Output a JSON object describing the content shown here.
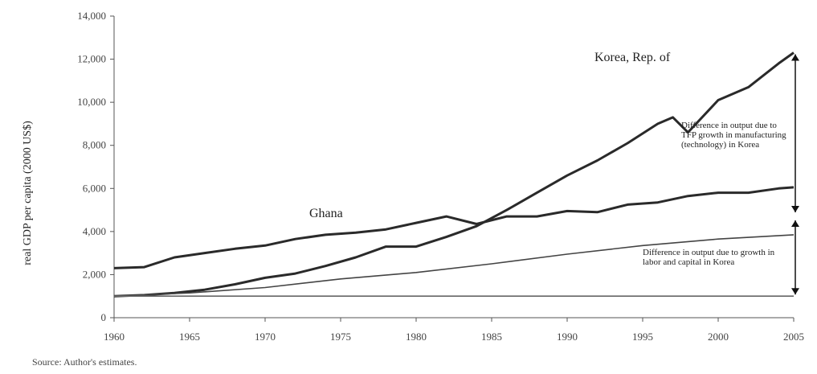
{
  "chart_data": {
    "type": "line",
    "title": "",
    "xlabel": "",
    "ylabel": "real GDP per capita (2000 US$)",
    "xlim": [
      1960,
      2005
    ],
    "ylim": [
      0,
      14000
    ],
    "x_ticks": [
      "1960",
      "1965",
      "1970",
      "1975",
      "1980",
      "1985",
      "1990",
      "1995",
      "2000",
      "2005"
    ],
    "y_ticks": [
      "0",
      "2,000",
      "4,000",
      "6,000",
      "8,000",
      "10,000",
      "12,000",
      "14,000"
    ],
    "grid": false,
    "legend": "none",
    "series": [
      {
        "name": "Korea, Rep. of",
        "color": "#2a2a2a",
        "x": [
          1960,
          1962,
          1964,
          1966,
          1968,
          1970,
          1972,
          1974,
          1976,
          1978,
          1980,
          1982,
          1984,
          1986,
          1988,
          1990,
          1992,
          1994,
          1996,
          1997,
          1998,
          2000,
          2002,
          2004,
          2005
        ],
        "y": [
          1000,
          1050,
          1150,
          1300,
          1550,
          1850,
          2050,
          2400,
          2800,
          3300,
          3300,
          3750,
          4250,
          5000,
          5800,
          6600,
          7300,
          8100,
          9000,
          9300,
          8600,
          10100,
          10700,
          11800,
          12300
        ]
      },
      {
        "name": "Ghana",
        "color": "#2a2a2a",
        "x": [
          1960,
          1962,
          1964,
          1966,
          1968,
          1970,
          1972,
          1974,
          1976,
          1978,
          1980,
          1982,
          1984,
          1986,
          1988,
          1990,
          1992,
          1994,
          1996,
          1998,
          2000,
          2002,
          2004,
          2005
        ],
        "y": [
          2300,
          2350,
          2800,
          3000,
          3200,
          3350,
          3650,
          3850,
          3950,
          4100,
          4400,
          4700,
          4350,
          4700,
          4700,
          4950,
          4900,
          5250,
          5350,
          5650,
          5800,
          5800,
          6000,
          6050
        ]
      },
      {
        "name": "",
        "color": "#444444",
        "x": [
          1960,
          1965,
          1970,
          1975,
          1980,
          1985,
          1990,
          1995,
          2000,
          2005
        ],
        "y": [
          1000,
          1150,
          1400,
          1800,
          2100,
          2500,
          2950,
          3350,
          3650,
          3850
        ]
      },
      {
        "name": "",
        "color": "#666666",
        "x": [
          1960,
          2005
        ],
        "y": [
          1000,
          1000
        ]
      }
    ],
    "annotations": {
      "korea_label": "Korea, Rep. of",
      "ghana_label": "Ghana",
      "upper_note": "Difference in output due to TFP growth in manufacturing (technology) in Korea",
      "lower_note": "Difference in output due to growth in labor and capital in Korea"
    }
  },
  "footnote": "Source: Author's estimates."
}
